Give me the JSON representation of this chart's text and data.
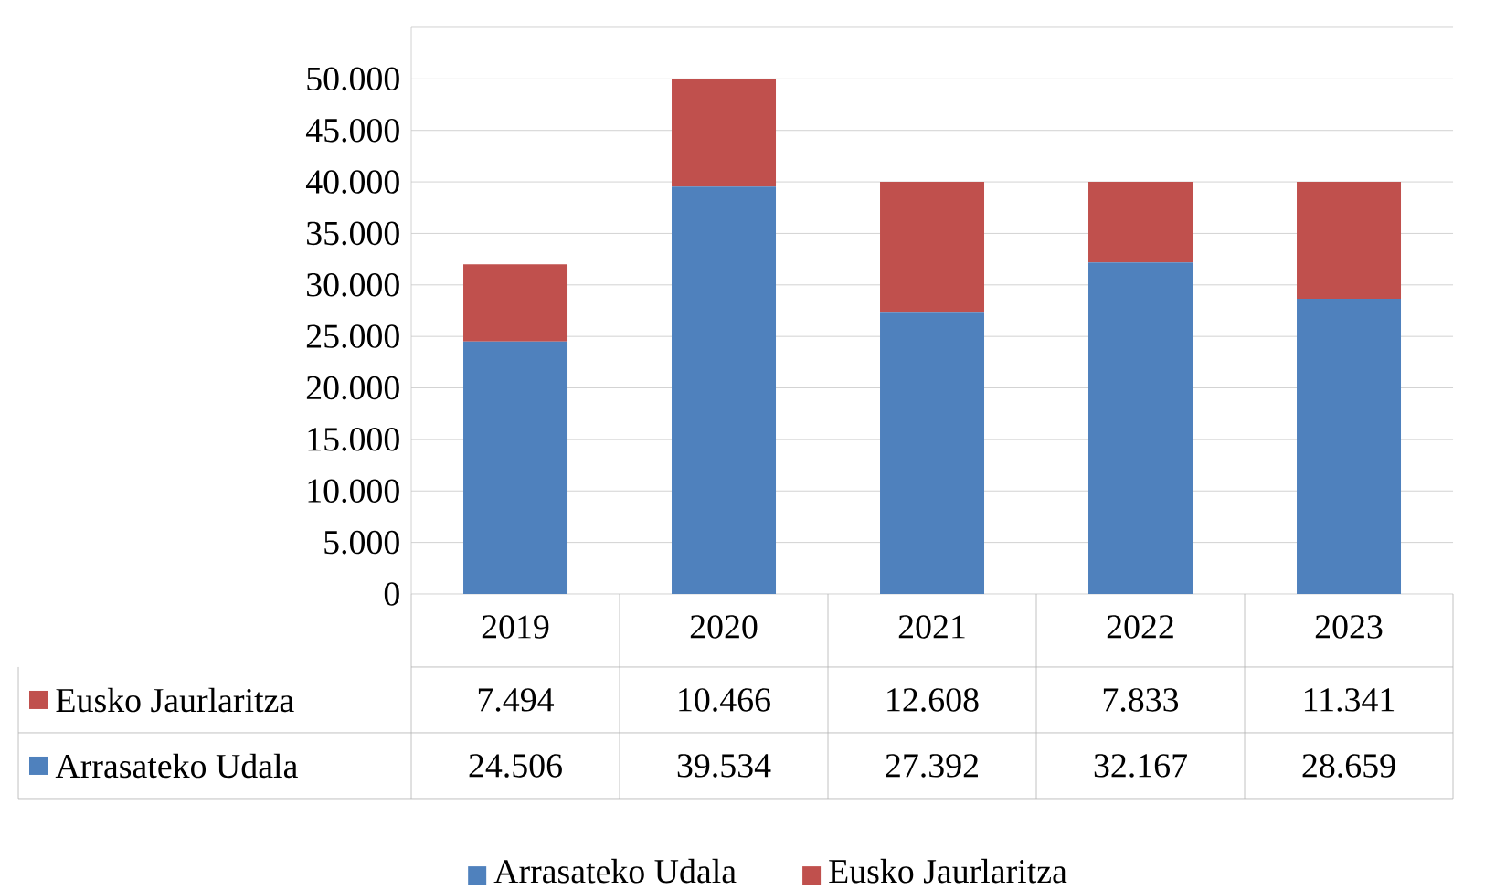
{
  "chart_data": {
    "type": "bar",
    "stacked": true,
    "categories": [
      "2019",
      "2020",
      "2021",
      "2022",
      "2023"
    ],
    "series": [
      {
        "name": "Arrasateko Udala",
        "color": "#4f81bd",
        "values": [
          24506,
          39534,
          27392,
          32167,
          28659
        ],
        "value_labels": [
          "24.506",
          "39.534",
          "27.392",
          "32.167",
          "28.659"
        ]
      },
      {
        "name": "Eusko Jaurlaritza",
        "color": "#c0504d",
        "values": [
          7494,
          10466,
          12608,
          7833,
          11341
        ],
        "value_labels": [
          "7.494",
          "10.466",
          "12.608",
          "7.833",
          "11.341"
        ]
      }
    ],
    "ylim": [
      0,
      55000
    ],
    "yticks": [
      0,
      {
        "value": 5000,
        "label": "5.000"
      },
      {
        "value": 10000,
        "label": "10.000"
      },
      {
        "value": 15000,
        "label": "15.000"
      },
      {
        "value": 20000,
        "label": "20.000"
      },
      {
        "value": 25000,
        "label": "25.000"
      },
      {
        "value": 30000,
        "label": "30.000"
      },
      {
        "value": 35000,
        "label": "35.000"
      },
      {
        "value": 40000,
        "label": "40.000"
      },
      {
        "value": 45000,
        "label": "45.000"
      },
      {
        "value": 50000,
        "label": "50.000"
      }
    ],
    "grid": "y",
    "legend": "bottom"
  }
}
